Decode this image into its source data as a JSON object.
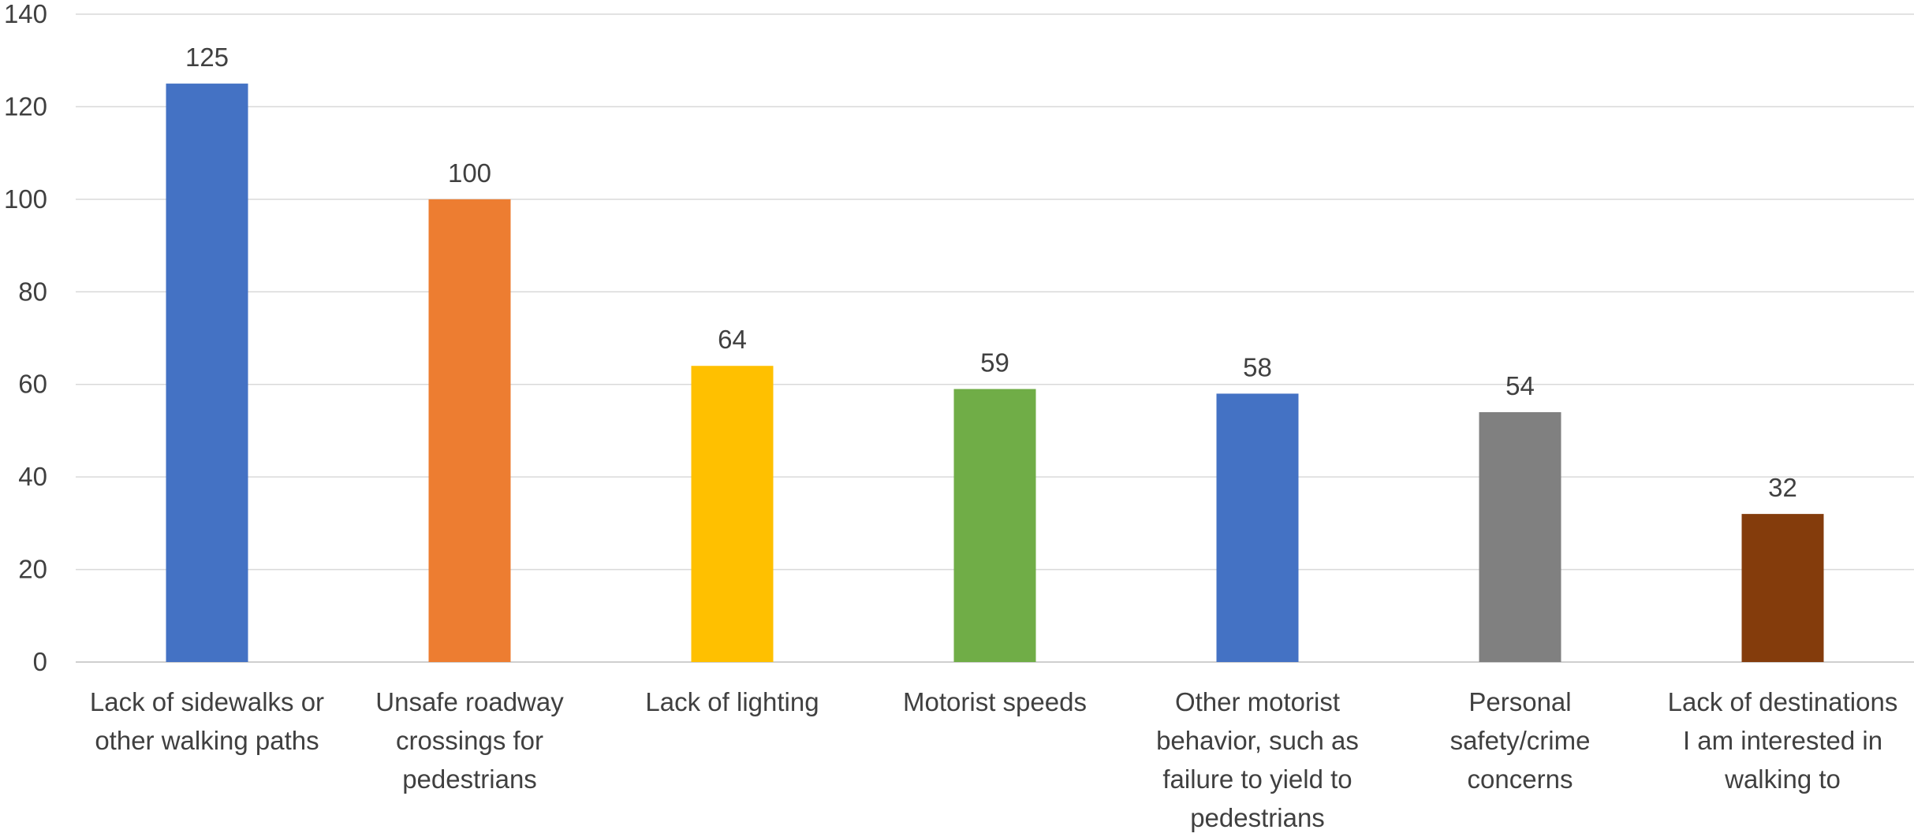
{
  "chart_data": {
    "type": "bar",
    "title": "",
    "xlabel": "",
    "ylabel": "",
    "ylim": [
      0,
      140
    ],
    "yticks": [
      0,
      20,
      40,
      60,
      80,
      100,
      120,
      140
    ],
    "grid": true,
    "legend": "none",
    "categories": [
      [
        "Lack of sidewalks or",
        "other walking paths"
      ],
      [
        "Unsafe roadway",
        "crossings for",
        "pedestrians"
      ],
      [
        "Lack of lighting"
      ],
      [
        "Motorist speeds"
      ],
      [
        "Other motorist",
        "behavior, such as",
        "failure to yield to",
        "pedestrians"
      ],
      [
        "Personal",
        "safety/crime",
        "concerns"
      ],
      [
        "Lack of destinations",
        "I am interested in",
        "walking to"
      ]
    ],
    "values": [
      125,
      100,
      64,
      59,
      58,
      54,
      32
    ],
    "bar_colors": [
      "#4472C4",
      "#ED7D31",
      "#FFC000",
      "#70AD47",
      "#4472C4",
      "#808080",
      "#843C0C"
    ]
  }
}
